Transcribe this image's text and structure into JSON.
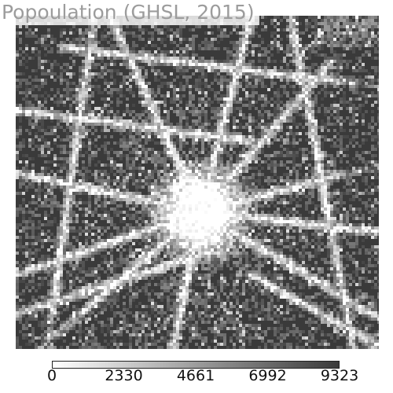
{
  "map": {
    "title": "Popoulation (GHSL, 2015)",
    "layer": "population-raster",
    "colormap": "greys",
    "colors": {
      "low": "#3a3a3a",
      "high": "#ffffff",
      "border": "#222222"
    }
  },
  "colorbar": {
    "min": 0,
    "max": 9323,
    "ticks": [
      "0",
      "2330",
      "4661",
      "6992",
      "9323"
    ]
  }
}
